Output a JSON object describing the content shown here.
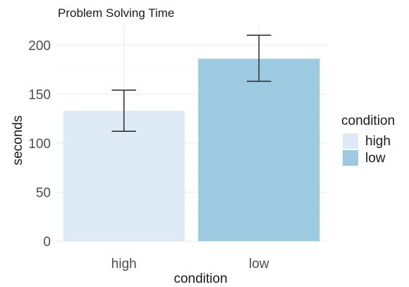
{
  "chart_data": {
    "type": "bar",
    "title": "Problem Solving Time",
    "xlabel": "condition",
    "ylabel": "seconds",
    "categories": [
      "high",
      "low"
    ],
    "values": [
      133,
      186
    ],
    "error_bars": [
      {
        "low": 112,
        "high": 154
      },
      {
        "low": 163,
        "high": 210
      }
    ],
    "ylim": [
      0,
      220
    ],
    "yticks": [
      0,
      50,
      100,
      150,
      200
    ],
    "grid": true,
    "colors": [
      "#deebf7",
      "#9ecae1"
    ],
    "legend": {
      "title": "condition",
      "position": "right",
      "items": [
        "high",
        "low"
      ]
    }
  }
}
